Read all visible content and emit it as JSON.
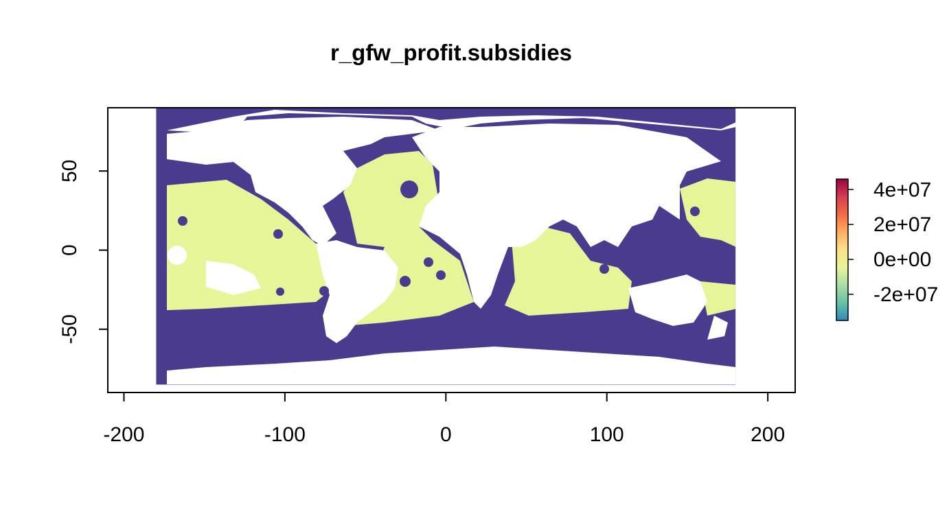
{
  "chart_data": {
    "type": "heatmap",
    "title": "r_gfw_profit.subsidies",
    "xlim": [
      -210,
      217
    ],
    "ylim": [
      -90,
      90
    ],
    "x_ticks": [
      "-200",
      "-100",
      "0",
      "100",
      "200"
    ],
    "x_tick_values": [
      -200,
      -100,
      0,
      100,
      200
    ],
    "y_ticks": [
      "-50",
      "0",
      "50"
    ],
    "y_tick_values": [
      -50,
      0,
      50
    ],
    "extent": {
      "x": [
        -180,
        180
      ],
      "y": [
        -85,
        90
      ]
    },
    "legend": {
      "labels": [
        "4e+07",
        "2e+07",
        "0e+00",
        "-2e+07"
      ],
      "values": [
        40000000,
        20000000,
        0,
        -20000000
      ],
      "min": -35000000,
      "max": 46000000,
      "colors": [
        "#3288bd",
        "#66c2a5",
        "#abdda4",
        "#e6f598",
        "#fee08b",
        "#fdae61",
        "#f46d43",
        "#d53e4f",
        "#9e0142"
      ],
      "placement": "right"
    },
    "colors": {
      "high_cost_ocean": "#4b3b8f",
      "near_zero_ocean": "#e6f598",
      "land": "#ffffff"
    }
  }
}
